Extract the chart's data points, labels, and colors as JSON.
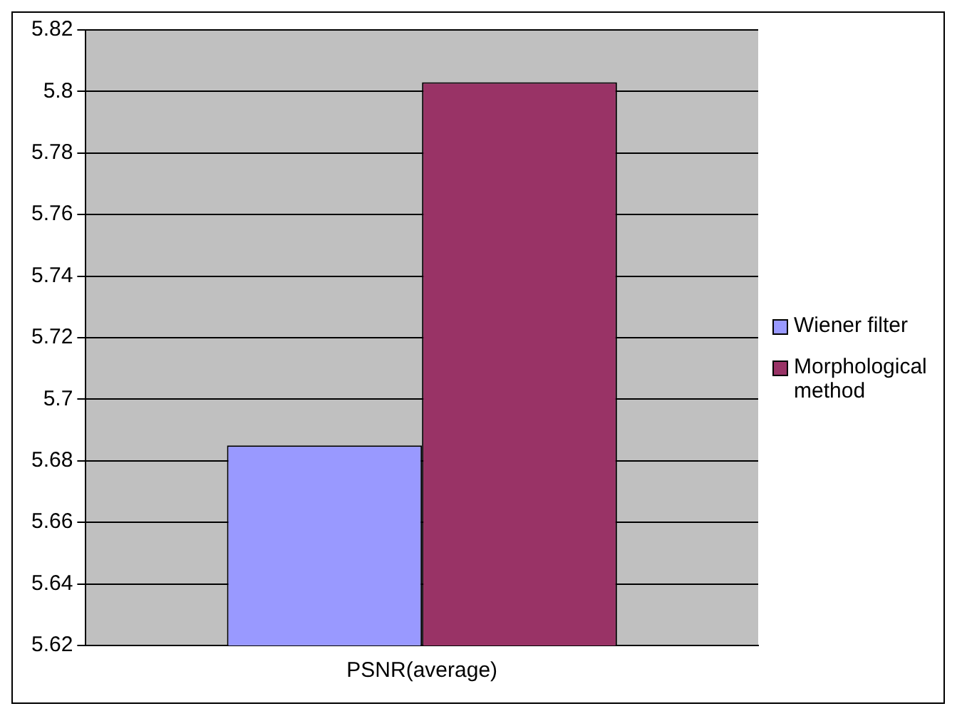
{
  "chart_data": {
    "type": "bar",
    "categories": [
      "PSNR(average)"
    ],
    "series": [
      {
        "name": "Wiener filter",
        "color": "#9999ff",
        "values": [
          5.685
        ]
      },
      {
        "name": "Morphological method",
        "color": "#993366",
        "values": [
          5.803
        ]
      }
    ],
    "ylim": [
      5.62,
      5.82
    ],
    "yticks": [
      5.62,
      5.64,
      5.66,
      5.68,
      5.7,
      5.72,
      5.74,
      5.76,
      5.78,
      5.8,
      5.82
    ],
    "grid": "y",
    "legend": "right"
  }
}
